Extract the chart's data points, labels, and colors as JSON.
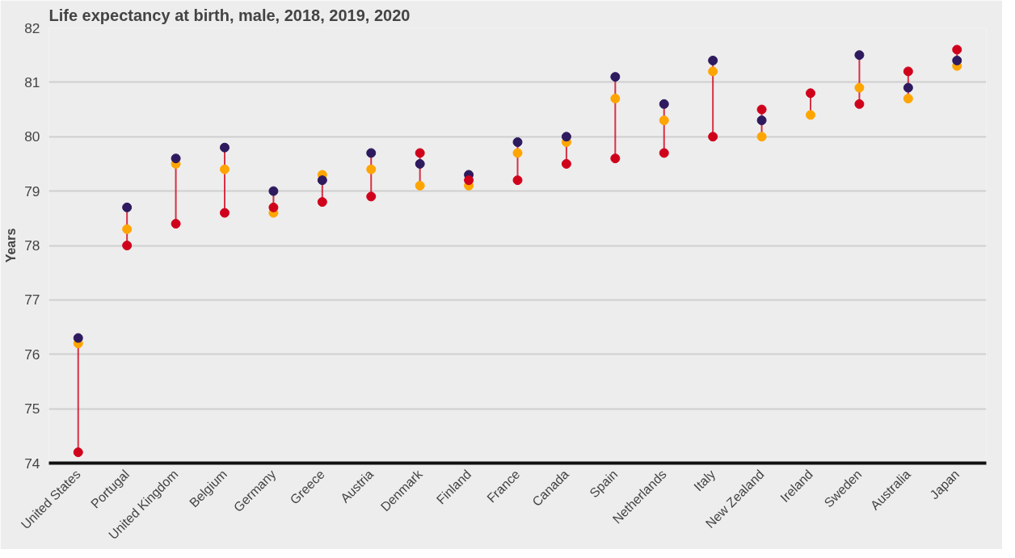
{
  "chart_data": {
    "type": "scatter",
    "title": "Life expectancy at birth, male, 2018, 2019, 2020",
    "ylabel": "Years",
    "categories": [
      "United States",
      "Portugal",
      "United Kingdom",
      "Belgium",
      "Germany",
      "Greece",
      "Austria",
      "Denmark",
      "Finland",
      "France",
      "Canada",
      "Spain",
      "Netherlands",
      "Italy",
      "New Zealand",
      "Ireland",
      "Sweden",
      "Australia",
      "Japan"
    ],
    "series": [
      {
        "color": "#ffa500",
        "values": [
          76.2,
          78.3,
          79.5,
          79.4,
          78.6,
          79.3,
          79.4,
          79.1,
          79.1,
          79.7,
          79.9,
          80.7,
          80.3,
          81.2,
          80.0,
          80.4,
          80.9,
          80.7,
          81.3
        ]
      },
      {
        "color": "#2e1a5e",
        "values": [
          76.3,
          78.7,
          79.6,
          79.8,
          79.0,
          79.2,
          79.7,
          79.5,
          79.3,
          79.9,
          80.0,
          81.1,
          80.6,
          81.4,
          80.3,
          null,
          81.5,
          80.9,
          81.4
        ]
      },
      {
        "color": "#d0021b",
        "values": [
          74.2,
          78.0,
          78.4,
          78.6,
          78.7,
          78.8,
          78.9,
          79.7,
          79.2,
          79.2,
          79.5,
          79.6,
          79.7,
          80.0,
          80.5,
          80.8,
          80.6,
          81.2,
          81.6
        ]
      }
    ],
    "ylim": [
      74,
      82
    ],
    "yticks": [
      74,
      75,
      76,
      77,
      78,
      79,
      80,
      81,
      82
    ],
    "grid": "y",
    "marker": "circle"
  }
}
